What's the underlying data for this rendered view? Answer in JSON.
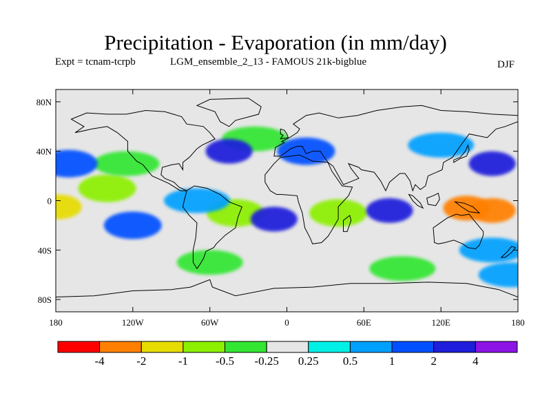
{
  "chart_data": {
    "type": "heatmap",
    "title": "Precipitation - Evaporation (in mm/day)",
    "experiment": "Expt = tcnam-tcrpb",
    "run": "LGM_ensemble_2_13 - FAMOUS 21k-bigblue",
    "season": "DJF",
    "x_axis": {
      "range": [
        -180,
        180
      ],
      "ticks": [
        -180,
        -120,
        -60,
        0,
        60,
        120,
        180
      ],
      "tick_labels": [
        "180",
        "120W",
        "60W",
        "0",
        "60E",
        "120E",
        "180"
      ]
    },
    "y_axis": {
      "range": [
        -90,
        90
      ],
      "ticks": [
        80,
        40,
        0,
        -40,
        -80
      ],
      "tick_labels": [
        "80N",
        "40N",
        "0",
        "40S",
        "80S"
      ]
    },
    "colorbar": {
      "colors": [
        "#ff0000",
        "#ff8000",
        "#e6dc00",
        "#8cf000",
        "#32e632",
        "#e6e6e6",
        "#00f0e6",
        "#00a0ff",
        "#0050ff",
        "#1e1edc",
        "#8c14e6"
      ],
      "labels": [
        "-4",
        "-2",
        "-1",
        "-0.5",
        "-0.25",
        "0.25",
        "0.5",
        "1",
        "2",
        "4"
      ]
    },
    "regions": [
      {
        "lon": 160,
        "lat": -8,
        "value": -4
      },
      {
        "lon": 140,
        "lat": -6,
        "value": -3
      },
      {
        "lon": -178,
        "lat": -5,
        "value": -2
      },
      {
        "lon": -140,
        "lat": 10,
        "value": -1
      },
      {
        "lon": -125,
        "lat": 30,
        "value": -0.5
      },
      {
        "lon": -40,
        "lat": -10,
        "value": -1
      },
      {
        "lon": 40,
        "lat": -10,
        "value": -1
      },
      {
        "lon": -25,
        "lat": 50,
        "value": -0.5
      },
      {
        "lon": 30,
        "lat": 55,
        "value": -0.25
      },
      {
        "lon": -100,
        "lat": -30,
        "value": -0.25
      },
      {
        "lon": -60,
        "lat": -50,
        "value": -0.5
      },
      {
        "lon": 90,
        "lat": -55,
        "value": -0.5
      },
      {
        "lon": -100,
        "lat": -65,
        "value": -0.25
      },
      {
        "lon": 160,
        "lat": 30,
        "value": 2
      },
      {
        "lon": -170,
        "lat": 30,
        "value": 1
      },
      {
        "lon": -45,
        "lat": 40,
        "value": 2
      },
      {
        "lon": 15,
        "lat": 40,
        "value": 1
      },
      {
        "lon": -10,
        "lat": -15,
        "value": 2
      },
      {
        "lon": 80,
        "lat": -8,
        "value": 2
      },
      {
        "lon": -120,
        "lat": -20,
        "value": 1
      },
      {
        "lon": 160,
        "lat": -40,
        "value": 0.5
      },
      {
        "lon": 120,
        "lat": 45,
        "value": 0.5
      },
      {
        "lon": 175,
        "lat": -60,
        "value": 0.5
      },
      {
        "lon": -70,
        "lat": 0,
        "value": 0.5
      }
    ]
  }
}
